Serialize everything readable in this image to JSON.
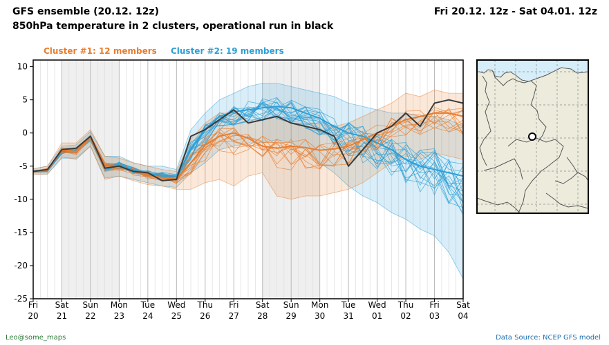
{
  "header": {
    "title": "GFS ensemble (20.12. 12z)",
    "subtitle": "850hPa temperature in 2 clusters, operational run in black",
    "period": "Fri 20.12. 12z - Sat 04.01. 12z"
  },
  "legend": {
    "cluster1": "Cluster #1: 12 members",
    "cluster2": "Cluster #2: 19 members"
  },
  "colors": {
    "cluster1": "#e87d2f",
    "cluster2": "#2e9fd6",
    "operational": "#3a3a3a",
    "credit": "#2f7a3a",
    "source": "#1f6fae",
    "sea": "#d6eef9",
    "land": "#ecebdc",
    "weekend_shade": "#efefef",
    "grid": "#c8c8c8"
  },
  "footer": {
    "left": "Leo@some_maps",
    "right": "Data Source: NCEP GFS model"
  },
  "chart_data": {
    "type": "line",
    "title": "850hPa temperature in 2 clusters, operational run in black",
    "xlabel": "",
    "ylabel": "",
    "ylim": [
      -25,
      11
    ],
    "yticks": [
      10,
      5,
      0,
      -5,
      -10,
      -15,
      -20,
      -25
    ],
    "x_ticks": [
      {
        "day": "Fri",
        "date": "20"
      },
      {
        "day": "Sat",
        "date": "21"
      },
      {
        "day": "Sun",
        "date": "22"
      },
      {
        "day": "Mon",
        "date": "23"
      },
      {
        "day": "Tue",
        "date": "24"
      },
      {
        "day": "Wed",
        "date": "25"
      },
      {
        "day": "Thu",
        "date": "26"
      },
      {
        "day": "Fri",
        "date": "27"
      },
      {
        "day": "Sat",
        "date": "28"
      },
      {
        "day": "Sun",
        "date": "29"
      },
      {
        "day": "Mon",
        "date": "30"
      },
      {
        "day": "Tue",
        "date": "31"
      },
      {
        "day": "Wed",
        "date": "01"
      },
      {
        "day": "Thu",
        "date": "02"
      },
      {
        "day": "Fri",
        "date": "03"
      },
      {
        "day": "Sat",
        "date": "04"
      }
    ],
    "x_days": [
      0,
      0.5,
      1,
      1.5,
      2,
      2.5,
      3,
      3.5,
      4,
      4.5,
      5,
      5.5,
      6,
      6.5,
      7,
      7.5,
      8,
      8.5,
      9,
      9.5,
      10,
      10.5,
      11,
      11.5,
      12,
      12.5,
      13,
      13.5,
      14,
      14.5,
      15
    ],
    "series": [
      {
        "name": "Operational run",
        "values": [
          -5.8,
          -5.5,
          -2.5,
          -2.3,
          -0.5,
          -5.3,
          -5.0,
          -5.8,
          -6.0,
          -7.2,
          -7.0,
          -0.5,
          0.5,
          2.0,
          3.5,
          1.5,
          2.0,
          2.5,
          1.5,
          1.0,
          0.5,
          -0.5,
          -5.0,
          -2.5,
          0.0,
          1.0,
          3.0,
          1.0,
          4.5,
          5.0,
          4.5
        ]
      },
      {
        "name": "Cluster #1 mean",
        "values": [
          -5.8,
          -5.6,
          -2.6,
          -2.8,
          -0.6,
          -5.0,
          -5.0,
          -5.8,
          -6.3,
          -6.8,
          -7.0,
          -4.5,
          -1.8,
          -0.5,
          0.0,
          -0.8,
          -2.0,
          -2.3,
          -2.0,
          -2.2,
          -2.6,
          -2.4,
          -2.0,
          -1.0,
          0.0,
          1.0,
          2.0,
          2.5,
          3.0,
          3.0,
          2.5
        ]
      },
      {
        "name": "Cluster #1 min",
        "values": [
          -6.2,
          -6.2,
          -3.6,
          -4.0,
          -2.0,
          -7.0,
          -6.5,
          -7.2,
          -7.8,
          -8.0,
          -8.5,
          -8.5,
          -7.5,
          -7.0,
          -8.0,
          -6.5,
          -6.0,
          -9.5,
          -10.0,
          -9.5,
          -9.5,
          -9.0,
          -8.5,
          -7.5,
          -6.0,
          -4.5,
          -3.5,
          -4.0,
          -3.0,
          -3.5,
          -4.0
        ]
      },
      {
        "name": "Cluster #1 max",
        "values": [
          -5.4,
          -5.0,
          -1.5,
          -1.5,
          0.5,
          -3.5,
          -3.8,
          -4.5,
          -5.0,
          -5.5,
          -5.8,
          -1.0,
          1.5,
          3.0,
          3.0,
          2.0,
          2.0,
          2.5,
          1.5,
          1.5,
          1.5,
          1.0,
          1.5,
          2.5,
          3.5,
          4.5,
          6.0,
          5.5,
          6.5,
          6.0,
          6.0
        ]
      },
      {
        "name": "Cluster #2 mean",
        "values": [
          -5.8,
          -5.7,
          -2.8,
          -2.6,
          -0.6,
          -5.0,
          -4.8,
          -5.6,
          -6.1,
          -6.5,
          -6.5,
          -2.5,
          0.5,
          2.5,
          3.2,
          3.5,
          3.8,
          4.0,
          3.8,
          3.0,
          2.2,
          1.0,
          0.0,
          -0.5,
          -1.5,
          -2.5,
          -4.0,
          -5.0,
          -5.5,
          -6.0,
          -6.5
        ]
      },
      {
        "name": "Cluster #2 min",
        "values": [
          -6.2,
          -6.2,
          -3.8,
          -3.8,
          -2.0,
          -6.8,
          -6.5,
          -7.0,
          -7.5,
          -8.0,
          -8.2,
          -6.0,
          -4.5,
          -2.5,
          -2.0,
          -1.5,
          -1.5,
          -1.0,
          -1.5,
          -2.5,
          -4.5,
          -6.0,
          -8.0,
          -9.5,
          -10.5,
          -12.0,
          -13.0,
          -14.5,
          -15.5,
          -18.0,
          -22.0
        ]
      },
      {
        "name": "Cluster #2 max",
        "values": [
          -5.4,
          -5.0,
          -2.0,
          -1.8,
          0.2,
          -3.5,
          -3.5,
          -4.5,
          -5.0,
          -5.0,
          -5.5,
          0.5,
          3.0,
          5.0,
          6.0,
          7.0,
          7.5,
          7.5,
          7.0,
          6.5,
          6.0,
          5.5,
          4.5,
          4.0,
          3.5,
          3.0,
          3.0,
          2.5,
          2.5,
          2.0,
          1.0
        ]
      }
    ],
    "grid": true
  },
  "map": {
    "marker": "location-marker"
  }
}
